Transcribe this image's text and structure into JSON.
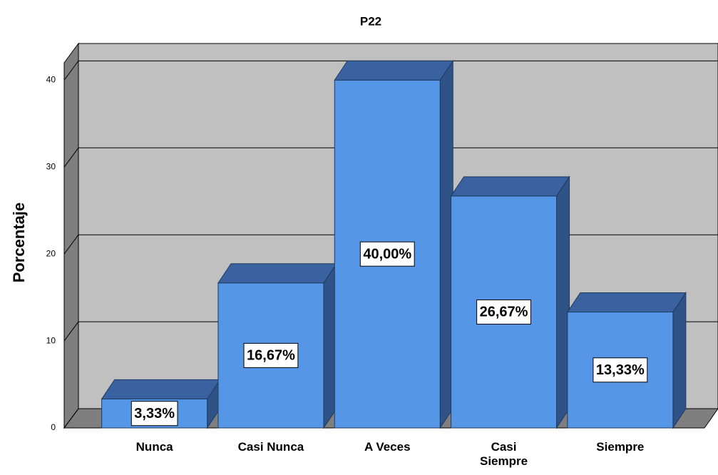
{
  "chart_data": {
    "type": "bar",
    "title": "P22",
    "ylabel": "Porcentaje",
    "categories": [
      "Nunca",
      "Casi Nunca",
      "A Veces",
      "Casi Siempre",
      "Siempre"
    ],
    "values": [
      3.33,
      16.67,
      40,
      26.67,
      13.33
    ],
    "value_labels": [
      "3,33%",
      "16,67%",
      "40,00%",
      "26,67%",
      "13,33%"
    ],
    "color": "#5596e6",
    "ylim": [
      0,
      42
    ],
    "yticks": [
      0,
      10,
      20,
      30,
      40
    ],
    "grid": true
  }
}
